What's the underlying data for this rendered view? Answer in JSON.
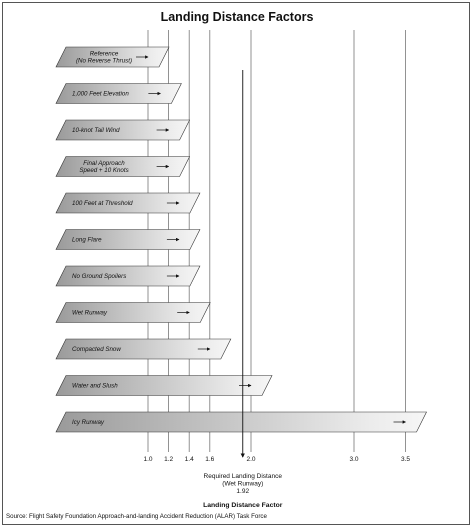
{
  "chart_data": {
    "type": "bar",
    "orientation": "horizontal",
    "title": "Landing Distance Factors",
    "xlabel": "Landing Distance Factor",
    "ylabel": "",
    "xlim": [
      0.7,
      3.7
    ],
    "ticks": [
      1.0,
      1.2,
      1.4,
      1.6,
      2.0,
      3.0,
      3.5
    ],
    "tick_labels": [
      "1.0",
      "1.2",
      "1.4",
      "1.6",
      "2.0",
      "3.0",
      "3.5"
    ],
    "gridlines": "vertical at ticks",
    "categories": [
      "Reference\n(No Reverse Thrust)",
      "1,000 Feet Elevation",
      "10-knot Tail Wind",
      "Final Approach\nSpeed + 10 Knots",
      "100 Feet at Threshold",
      "Long Flare",
      "No Ground Spoilers",
      "Wet Runway",
      "Compacted Snow",
      "Water and Slush",
      "Icy Runway"
    ],
    "values": [
      1.0,
      1.12,
      1.2,
      1.2,
      1.3,
      1.3,
      1.3,
      1.4,
      1.6,
      2.0,
      3.5
    ],
    "annotation": {
      "lines": [
        "Required Landing Distance",
        "(Wet Runway)",
        "1.92"
      ],
      "value": 1.92
    }
  },
  "colors": {
    "bar_light": "#ececec",
    "bar_dark": "#9a9a9a",
    "grid": "#777777",
    "frame": "#555555"
  },
  "source": "Source: Flight Safety Foundation Approach-and-landing Accident Reduction (ALAR) Task Force"
}
